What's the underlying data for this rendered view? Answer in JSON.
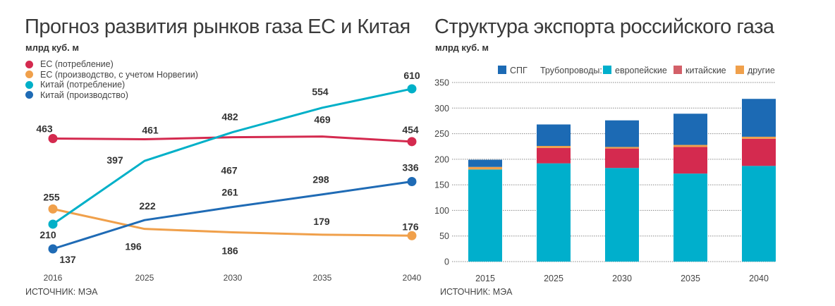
{
  "chart_data": [
    {
      "type": "line",
      "title": "Прогноз развития рынков газа ЕС и Китая",
      "unit_label": "млрд куб. м",
      "categories": [
        "2016",
        "2025",
        "2030",
        "2035",
        "2040"
      ],
      "legend_placement": "top-left",
      "grid": false,
      "series": [
        {
          "name": "ЕС (потребление)",
          "color": "#d42a4f",
          "values": [
            463,
            461,
            467,
            469,
            454
          ]
        },
        {
          "name": "ЕС (производство, с учетом Норвегии)",
          "color": "#f0a04b",
          "values": [
            255,
            196,
            186,
            179,
            176
          ]
        },
        {
          "name": "Китай (потребление)",
          "color": "#00b0c8",
          "values": [
            210,
            397,
            482,
            554,
            610
          ]
        },
        {
          "name": "Китай (производство)",
          "color": "#1f6bb5",
          "values": [
            137,
            222,
            261,
            298,
            336
          ]
        }
      ],
      "source": "ИСТОЧНИК: МЭА"
    },
    {
      "type": "bar",
      "stacked": true,
      "title": "Структура экспорта российского газа",
      "unit_label": "млрд куб. м",
      "categories": [
        "2015",
        "2025",
        "2030",
        "2035",
        "2040"
      ],
      "ylim": [
        0,
        350
      ],
      "yticks": [
        "0",
        "50",
        "100",
        "150",
        "200",
        "250",
        "300",
        "350"
      ],
      "grid": true,
      "legend_placement": "top",
      "legend_group_label": "Трубопроводы:",
      "series": [
        {
          "name": "европейские",
          "color": "#00afcc",
          "values": [
            180,
            192,
            183,
            172,
            187
          ]
        },
        {
          "name": "китайские",
          "color": "#d42a4f",
          "legend_color": "#d36069",
          "values": [
            0,
            30,
            38,
            52,
            53
          ]
        },
        {
          "name": "другие",
          "color": "#f0a04b",
          "values": [
            5,
            4,
            3,
            4,
            4
          ]
        },
        {
          "name": "СПГ",
          "color": "#1c6ab4",
          "values": [
            14,
            42,
            52,
            61,
            74
          ]
        }
      ],
      "source": "ИСТОЧНИК: МЭА"
    }
  ]
}
